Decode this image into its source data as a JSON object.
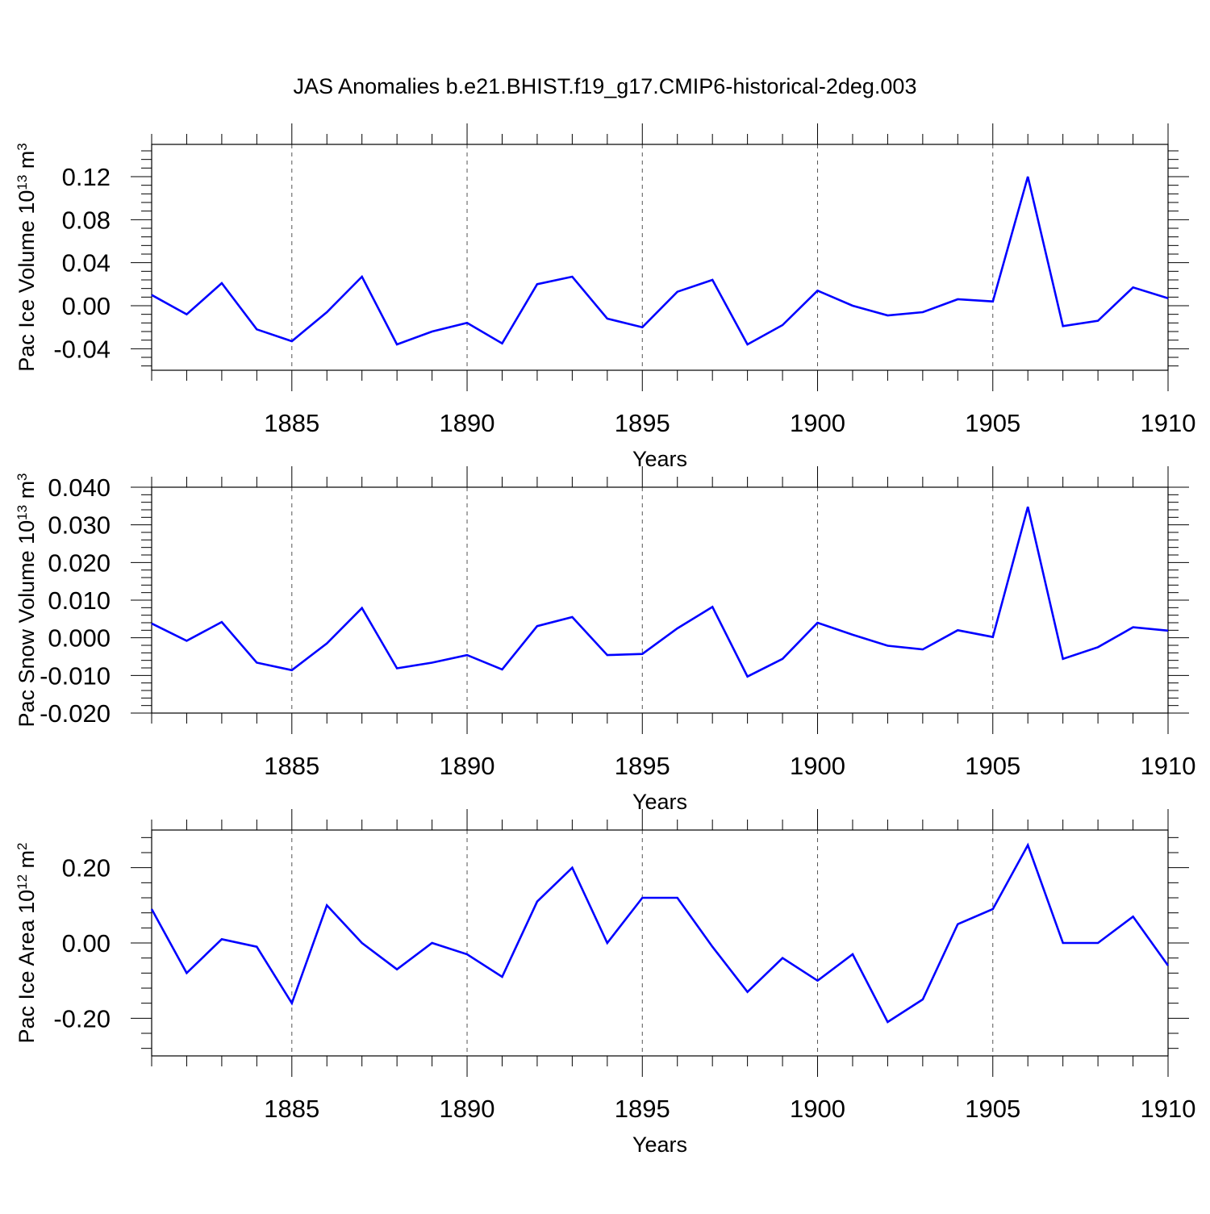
{
  "title": "JAS Anomalies b.e21.BHIST.f19_g17.CMIP6-historical-2deg.003",
  "style": {
    "line_color": "#0000ff",
    "axis_color": "#000000",
    "grid_color": "#555555",
    "background": "#ffffff"
  },
  "chart_data": [
    {
      "type": "line",
      "title": "JAS Anomalies b.e21.BHIST.f19_g17.CMIP6-historical-2deg.003",
      "ylabel": {
        "main": "Pac Ice Volume 10",
        "exp": "13",
        "unit": " m",
        "unit_exp": "3"
      },
      "xlabel": "Years",
      "xlim": [
        1881,
        1910
      ],
      "ylim": [
        -0.06,
        0.15
      ],
      "xticks": [
        1885,
        1890,
        1895,
        1900,
        1905,
        1910
      ],
      "xtick_labels": [
        "1885",
        "1890",
        "1895",
        "1900",
        "1905",
        "1910"
      ],
      "yticks": [
        0.12,
        0.08,
        0.04,
        0.0,
        -0.04
      ],
      "ytick_labels": [
        "0.12",
        "0.08",
        "0.04",
        "0.00",
        "-0.04"
      ],
      "grid": "x-dashed",
      "series": [
        {
          "name": "Pac Ice Volume",
          "x": [
            1881,
            1882,
            1883,
            1884,
            1885,
            1886,
            1887,
            1888,
            1889,
            1890,
            1891,
            1892,
            1893,
            1894,
            1895,
            1896,
            1897,
            1898,
            1899,
            1900,
            1901,
            1902,
            1903,
            1904,
            1905,
            1906,
            1907,
            1908,
            1909,
            1910
          ],
          "values": [
            0.01,
            -0.008,
            0.021,
            -0.022,
            -0.033,
            -0.006,
            0.027,
            -0.036,
            -0.024,
            -0.016,
            -0.035,
            0.02,
            0.027,
            -0.012,
            -0.02,
            0.013,
            0.024,
            -0.036,
            -0.018,
            0.014,
            0.0,
            -0.009,
            -0.006,
            0.006,
            0.004,
            0.12,
            -0.019,
            -0.014,
            0.017,
            0.007
          ]
        }
      ]
    },
    {
      "type": "line",
      "ylabel": {
        "main": "Pac Snow Volume 10",
        "exp": "13",
        "unit": " m",
        "unit_exp": "3"
      },
      "xlabel": "Years",
      "xlim": [
        1881,
        1910
      ],
      "ylim": [
        -0.02,
        0.04
      ],
      "xticks": [
        1885,
        1890,
        1895,
        1900,
        1905,
        1910
      ],
      "xtick_labels": [
        "1885",
        "1890",
        "1895",
        "1900",
        "1905",
        "1910"
      ],
      "yticks": [
        0.04,
        0.03,
        0.02,
        0.01,
        0.0,
        -0.01,
        -0.02
      ],
      "ytick_labels": [
        "0.040",
        "0.030",
        "0.020",
        "0.010",
        "0.000",
        "-0.010",
        "-0.020"
      ],
      "grid": "x-dashed",
      "series": [
        {
          "name": "Pac Snow Volume",
          "x": [
            1881,
            1882,
            1883,
            1884,
            1885,
            1886,
            1887,
            1888,
            1889,
            1890,
            1891,
            1892,
            1893,
            1894,
            1895,
            1896,
            1897,
            1898,
            1899,
            1900,
            1901,
            1902,
            1903,
            1904,
            1905,
            1906,
            1907,
            1908,
            1909,
            1910
          ],
          "values": [
            0.0038,
            -0.0008,
            0.0042,
            -0.0066,
            -0.0086,
            -0.0015,
            0.0079,
            -0.0081,
            -0.0066,
            -0.0046,
            -0.0084,
            0.0031,
            0.0055,
            -0.0046,
            -0.0043,
            0.0025,
            0.0082,
            -0.0103,
            -0.0056,
            0.004,
            0.0008,
            -0.0021,
            -0.0031,
            0.002,
            0.0002,
            0.0348,
            -0.0056,
            -0.0025,
            0.0028,
            0.0019
          ]
        }
      ]
    },
    {
      "type": "line",
      "ylabel": {
        "main": "Pac Ice Area 10",
        "exp": "12",
        "unit": " m",
        "unit_exp": "2"
      },
      "xlabel": "Years",
      "xlim": [
        1881,
        1910
      ],
      "ylim": [
        -0.3,
        0.3
      ],
      "xticks": [
        1885,
        1890,
        1895,
        1900,
        1905,
        1910
      ],
      "xtick_labels": [
        "1885",
        "1890",
        "1895",
        "1900",
        "1905",
        "1910"
      ],
      "yticks": [
        0.2,
        0.0,
        -0.2
      ],
      "ytick_labels": [
        "0.20",
        "0.00",
        "-0.20"
      ],
      "grid": "x-dashed",
      "series": [
        {
          "name": "Pac Ice Area",
          "x": [
            1881,
            1882,
            1883,
            1884,
            1885,
            1886,
            1887,
            1888,
            1889,
            1890,
            1891,
            1892,
            1893,
            1894,
            1895,
            1896,
            1897,
            1898,
            1899,
            1900,
            1901,
            1902,
            1903,
            1904,
            1905,
            1906,
            1907,
            1908,
            1909,
            1910
          ],
          "values": [
            0.09,
            -0.08,
            0.01,
            -0.01,
            -0.16,
            0.1,
            0.0,
            -0.07,
            0.0,
            -0.03,
            -0.09,
            0.11,
            0.2,
            0.0,
            0.12,
            0.12,
            -0.01,
            -0.13,
            -0.04,
            -0.1,
            -0.03,
            -0.21,
            -0.15,
            0.05,
            0.09,
            0.26,
            0.0,
            0.0,
            0.07,
            -0.06
          ]
        }
      ]
    }
  ]
}
